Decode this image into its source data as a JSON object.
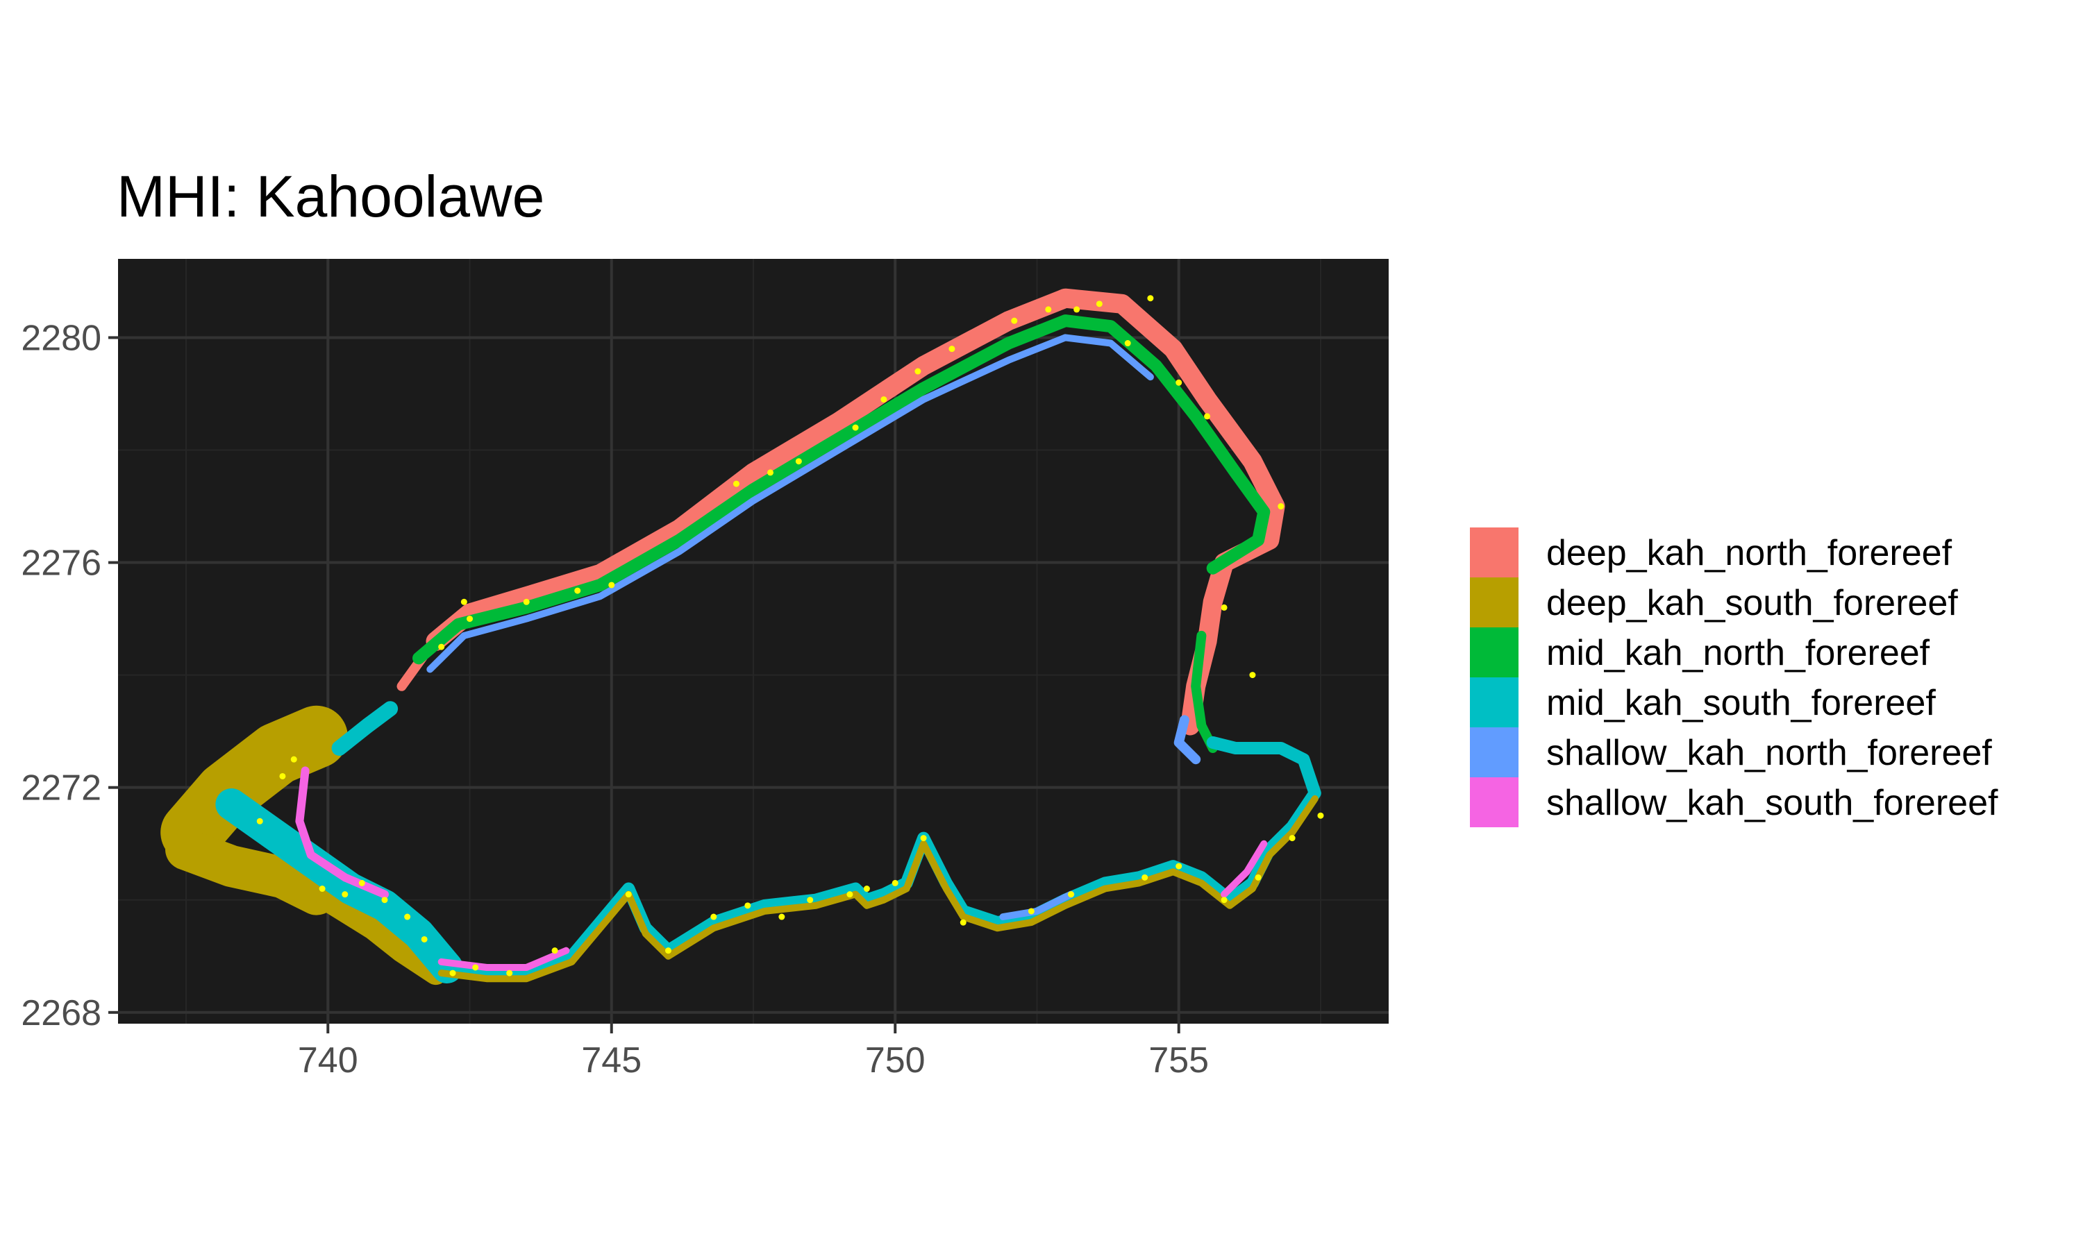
{
  "chart_data": {
    "type": "map",
    "title": "MHI: Kahoolawe",
    "xlabel": "",
    "ylabel": "",
    "xlim": [
      736.3,
      758.7
    ],
    "ylim": [
      2267.8,
      2281.4
    ],
    "x_ticks": [
      740,
      745,
      750,
      755
    ],
    "y_ticks": [
      2268,
      2272,
      2276,
      2280
    ],
    "x_minor": [
      737.5,
      742.5,
      747.5,
      752.5,
      757.5
    ],
    "y_minor": [
      2270,
      2274,
      2278
    ],
    "grid": true,
    "panel_background": "#1b1b1b",
    "gridline_color": "#333333",
    "legend_position": "right",
    "legend": [
      {
        "label": "deep_kah_north_forereef",
        "color": "#F8766D"
      },
      {
        "label": "deep_kah_south_forereef",
        "color": "#B79F00"
      },
      {
        "label": "mid_kah_north_forereef",
        "color": "#00BA38"
      },
      {
        "label": "mid_kah_south_forereef",
        "color": "#00BFC4"
      },
      {
        "label": "shallow_kah_north_forereef",
        "color": "#619CFF"
      },
      {
        "label": "shallow_kah_south_forereef",
        "color": "#F564E3"
      }
    ],
    "site_point_color": "#ffff00",
    "site_points": [
      [
        738.8,
        2271.4
      ],
      [
        739.2,
        2272.2
      ],
      [
        739.4,
        2272.5
      ],
      [
        739.9,
        2270.2
      ],
      [
        740.3,
        2270.1
      ],
      [
        740.6,
        2270.3
      ],
      [
        741.0,
        2270.0
      ],
      [
        741.4,
        2269.7
      ],
      [
        741.7,
        2269.3
      ],
      [
        742.2,
        2268.7
      ],
      [
        742.6,
        2268.8
      ],
      [
        743.2,
        2268.7
      ],
      [
        744.0,
        2269.1
      ],
      [
        745.0,
        2275.6
      ],
      [
        745.3,
        2270.1
      ],
      [
        746.0,
        2269.1
      ],
      [
        742.0,
        2274.5
      ],
      [
        742.5,
        2275.0
      ],
      [
        742.4,
        2275.3
      ],
      [
        744.4,
        2275.5
      ],
      [
        743.5,
        2275.3
      ],
      [
        747.2,
        2277.4
      ],
      [
        747.8,
        2277.6
      ],
      [
        748.3,
        2277.8
      ],
      [
        749.3,
        2278.4
      ],
      [
        749.8,
        2278.9
      ],
      [
        750.4,
        2279.4
      ],
      [
        751.0,
        2279.8
      ],
      [
        752.1,
        2280.3
      ],
      [
        752.7,
        2280.5
      ],
      [
        753.2,
        2280.5
      ],
      [
        753.6,
        2280.6
      ],
      [
        754.1,
        2279.9
      ],
      [
        754.5,
        2280.7
      ],
      [
        755.0,
        2279.2
      ],
      [
        755.5,
        2278.6
      ],
      [
        756.8,
        2277.0
      ],
      [
        755.8,
        2275.2
      ],
      [
        756.3,
        2274.0
      ],
      [
        749.2,
        2270.1
      ],
      [
        749.5,
        2270.2
      ],
      [
        748.5,
        2270.0
      ],
      [
        750.0,
        2270.3
      ],
      [
        750.5,
        2271.1
      ],
      [
        751.2,
        2269.6
      ],
      [
        752.4,
        2269.8
      ],
      [
        753.1,
        2270.1
      ],
      [
        754.4,
        2270.4
      ],
      [
        755.0,
        2270.6
      ],
      [
        755.8,
        2270.0
      ],
      [
        756.4,
        2270.4
      ],
      [
        757.0,
        2271.1
      ],
      [
        757.5,
        2271.5
      ],
      [
        746.8,
        2269.7
      ],
      [
        747.4,
        2269.9
      ],
      [
        748.0,
        2269.7
      ]
    ]
  }
}
